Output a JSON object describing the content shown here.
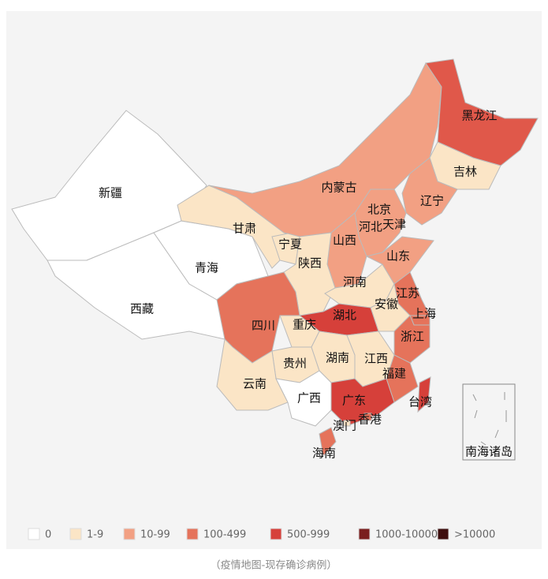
{
  "map": {
    "regions": [
      {
        "name": "新疆",
        "color": "#ffffff"
      },
      {
        "name": "西藏",
        "color": "#ffffff"
      },
      {
        "name": "青海",
        "color": "#ffffff"
      },
      {
        "name": "甘肃",
        "color": "#fbe5c6"
      },
      {
        "name": "内蒙古",
        "color": "#f2a083"
      },
      {
        "name": "黑龙江",
        "color": "#e0584a"
      },
      {
        "name": "吉林",
        "color": "#fbe5c6"
      },
      {
        "name": "辽宁",
        "color": "#f2a083"
      },
      {
        "name": "北京",
        "color": "#e5735b"
      },
      {
        "name": "天津",
        "color": "#f2a083"
      },
      {
        "name": "河北",
        "color": "#f2a083"
      },
      {
        "name": "山西",
        "color": "#f2a083"
      },
      {
        "name": "宁夏",
        "color": "#fbe5c6"
      },
      {
        "name": "陕西",
        "color": "#fbe5c6"
      },
      {
        "name": "河南",
        "color": "#fbe5c6"
      },
      {
        "name": "山东",
        "color": "#f2a083"
      },
      {
        "name": "江苏",
        "color": "#e5735b"
      },
      {
        "name": "安徽",
        "color": "#fbe5c6"
      },
      {
        "name": "上海",
        "color": "#e5735b"
      },
      {
        "name": "浙江",
        "color": "#e5735b"
      },
      {
        "name": "湖北",
        "color": "#d6403a"
      },
      {
        "name": "重庆",
        "color": "#fbe5c6"
      },
      {
        "name": "四川",
        "color": "#e5735b"
      },
      {
        "name": "贵州",
        "color": "#fbe5c6"
      },
      {
        "name": "云南",
        "color": "#fbe5c6"
      },
      {
        "name": "湖南",
        "color": "#fbe5c6"
      },
      {
        "name": "江西",
        "color": "#fbe5c6"
      },
      {
        "name": "福建",
        "color": "#e5735b"
      },
      {
        "name": "广东",
        "color": "#d6403a"
      },
      {
        "name": "广西",
        "color": "#ffffff"
      },
      {
        "name": "海南",
        "color": "#e5735b"
      },
      {
        "name": "香港",
        "color": "#e5735b"
      },
      {
        "name": "澳门",
        "color": "#fbe5c6"
      },
      {
        "name": "台湾",
        "color": "#d6403a"
      }
    ],
    "south_sea_islands": "南海诸岛",
    "legend": [
      {
        "label": "0",
        "color": "#ffffff"
      },
      {
        "label": "1-9",
        "color": "#fbe5c6"
      },
      {
        "label": "10-99",
        "color": "#f2a083"
      },
      {
        "label": "100-499",
        "color": "#e5735b"
      },
      {
        "label": "500-999",
        "color": "#d6403a"
      },
      {
        "label": "1000-10000",
        "color": "#7a1f1f"
      },
      {
        "label": ">10000",
        "color": "#3d0d0d"
      }
    ],
    "caption": "（疫情地图-现存确诊病例）"
  }
}
